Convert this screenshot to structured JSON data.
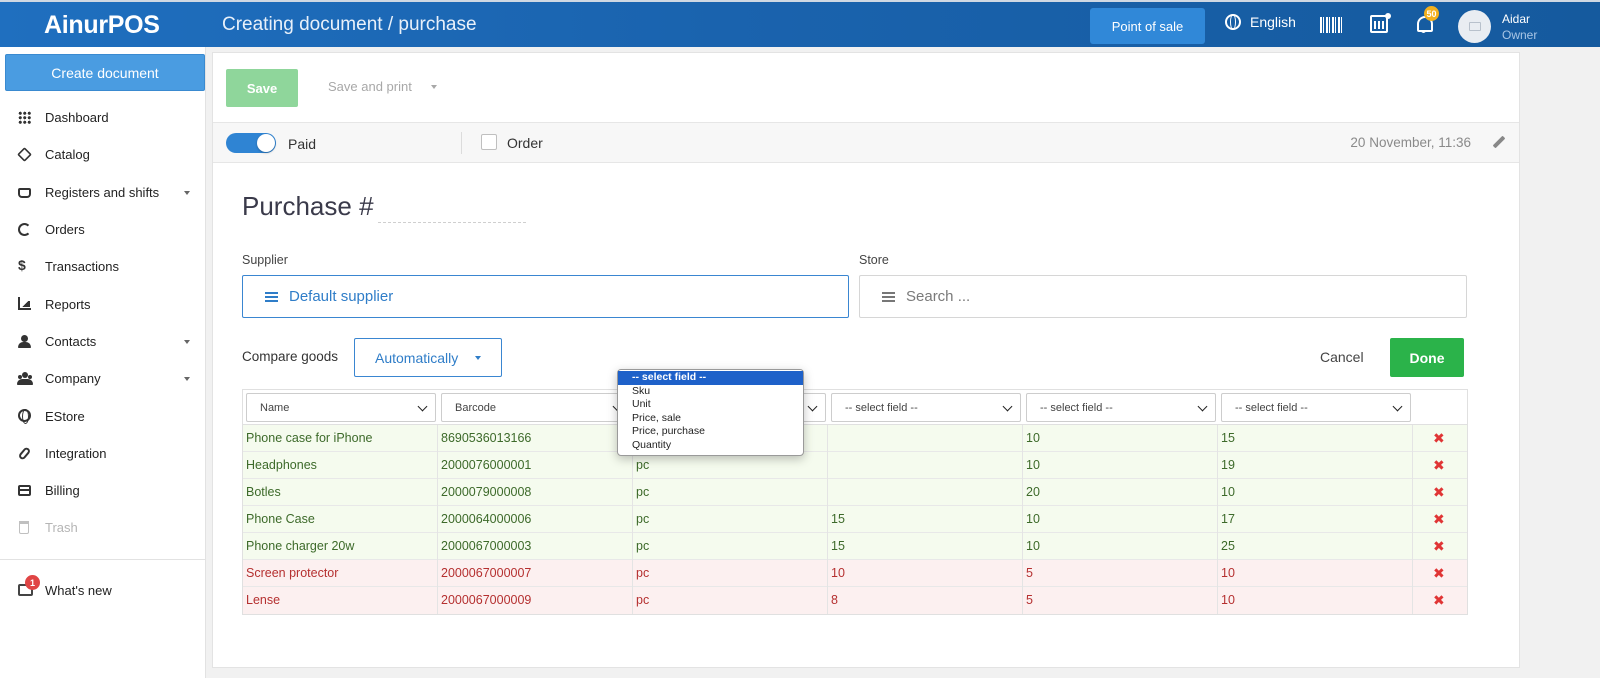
{
  "app": {
    "logo": "AinurPOS",
    "page_title": "Creating document / purchase",
    "pos_button": "Point of sale",
    "language": "English",
    "notifications_count": "50",
    "user_name": "Aidar",
    "user_role": "Owner"
  },
  "sidebar": {
    "create_button": "Create document",
    "items": [
      {
        "label": "Dashboard",
        "icon": "grid-icon"
      },
      {
        "label": "Catalog",
        "icon": "box-icon"
      },
      {
        "label": "Registers and shifts",
        "icon": "register-icon"
      },
      {
        "label": "Orders",
        "icon": "refresh-icon"
      },
      {
        "label": "Transactions",
        "icon": "dollar-icon"
      },
      {
        "label": "Reports",
        "icon": "chart-icon"
      },
      {
        "label": "Contacts",
        "icon": "user-icon"
      },
      {
        "label": "Company",
        "icon": "users-icon"
      },
      {
        "label": "EStore",
        "icon": "globe-icon"
      },
      {
        "label": "Integration",
        "icon": "paperclip-icon"
      },
      {
        "label": "Billing",
        "icon": "credit-card-icon"
      },
      {
        "label": "Trash",
        "icon": "trash-icon"
      }
    ],
    "whats_new": "What's new",
    "whats_new_badge": "1"
  },
  "toolbar": {
    "save": "Save",
    "save_and_print": "Save and print"
  },
  "status": {
    "paid_label": "Paid",
    "paid_on": true,
    "order_label": "Order",
    "order_checked": false,
    "date": "20 November, 11:36"
  },
  "document": {
    "title": "Purchase #",
    "number": "",
    "supplier_label": "Supplier",
    "supplier_value": "Default supplier",
    "store_label": "Store",
    "store_placeholder": "Search ...",
    "compare_label": "Compare goods",
    "compare_value": "Automatically",
    "cancel": "Cancel",
    "done": "Done"
  },
  "import_table": {
    "columns": [
      "Name",
      "Barcode",
      "-- select field --",
      "-- select field --",
      "-- select field --",
      "-- select field --"
    ],
    "rows": [
      {
        "status": "ok",
        "cells": [
          "Phone case for iPhone",
          "8690536013166",
          "",
          "",
          "10",
          "15"
        ]
      },
      {
        "status": "ok",
        "cells": [
          "Headphones",
          "2000076000001",
          "pc",
          "",
          "10",
          "19"
        ]
      },
      {
        "status": "ok",
        "cells": [
          "Botles",
          "2000079000008",
          "pc",
          "",
          "20",
          "10"
        ]
      },
      {
        "status": "ok",
        "cells": [
          "Phone Case",
          "2000064000006",
          "pc",
          "15",
          "10",
          "17"
        ]
      },
      {
        "status": "ok",
        "cells": [
          "Phone charger 20w",
          "2000067000003",
          "pc",
          "15",
          "10",
          "25"
        ]
      },
      {
        "status": "error",
        "cells": [
          "Screen protector",
          "2000067000007",
          "pc",
          "10",
          "5",
          "10"
        ]
      },
      {
        "status": "error",
        "cells": [
          "Lense",
          "2000067000009",
          "pc",
          "8",
          "5",
          "10"
        ]
      }
    ],
    "open_dropdown_options": [
      "-- select field --",
      "Sku",
      "Unit",
      "Price, sale",
      "Price, purchase",
      "Quantity"
    ],
    "open_dropdown_selected": "-- select field --"
  },
  "colors": {
    "header_blue": "#1a63ae",
    "accent_blue": "#2f84d3",
    "done_green": "#2bb34a",
    "save_green_disabled": "#8fd69b",
    "ok_row_bg": "#f5fbee",
    "error_row_bg": "#fcf0f0",
    "delete_red": "#e03535"
  }
}
